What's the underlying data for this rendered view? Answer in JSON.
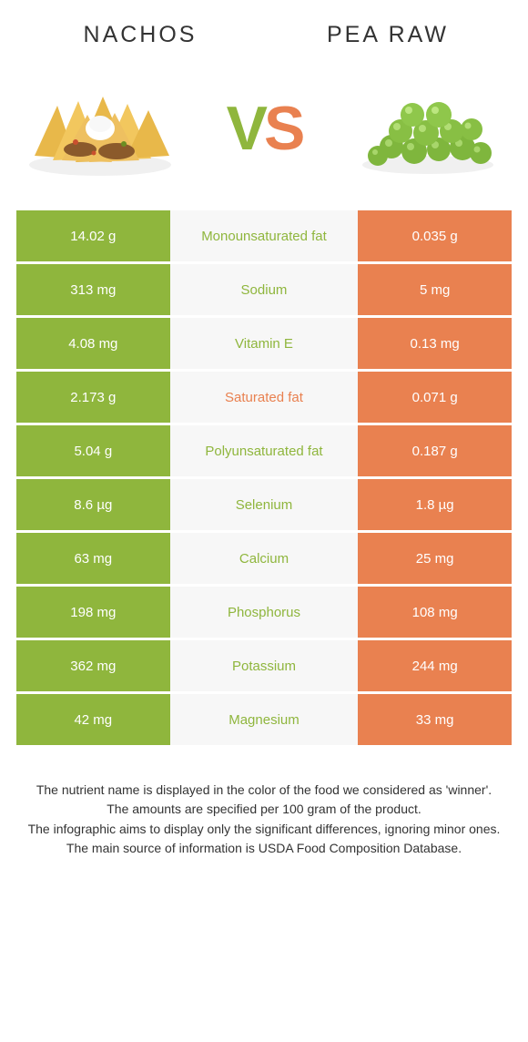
{
  "colors": {
    "left": "#8fb63d",
    "right": "#e98150",
    "mid_bg": "#f7f7f7",
    "text_white": "#ffffff",
    "body_text": "#333333"
  },
  "header": {
    "left_title": "Nachos",
    "right_title": "Pea raw"
  },
  "vs": {
    "v": "V",
    "s": "S"
  },
  "rows": [
    {
      "left": "14.02 g",
      "mid": "Monounsaturated fat",
      "right": "0.035 g",
      "winner": "left"
    },
    {
      "left": "313 mg",
      "mid": "Sodium",
      "right": "5 mg",
      "winner": "left"
    },
    {
      "left": "4.08 mg",
      "mid": "Vitamin E",
      "right": "0.13 mg",
      "winner": "left"
    },
    {
      "left": "2.173 g",
      "mid": "Saturated fat",
      "right": "0.071 g",
      "winner": "right"
    },
    {
      "left": "5.04 g",
      "mid": "Polyunsaturated fat",
      "right": "0.187 g",
      "winner": "left"
    },
    {
      "left": "8.6 µg",
      "mid": "Selenium",
      "right": "1.8 µg",
      "winner": "left"
    },
    {
      "left": "63 mg",
      "mid": "Calcium",
      "right": "25 mg",
      "winner": "left"
    },
    {
      "left": "198 mg",
      "mid": "Phosphorus",
      "right": "108 mg",
      "winner": "left"
    },
    {
      "left": "362 mg",
      "mid": "Potassium",
      "right": "244 mg",
      "winner": "left"
    },
    {
      "left": "42 mg",
      "mid": "Magnesium",
      "right": "33 mg",
      "winner": "left"
    }
  ],
  "footnotes": [
    "The nutrient name is displayed in the color of the food we considered as 'winner'.",
    "The amounts are specified per 100 gram of the product.",
    "The infographic aims to display only the significant differences, ignoring minor ones.",
    "The main source of information is USDA Food Composition Database."
  ]
}
